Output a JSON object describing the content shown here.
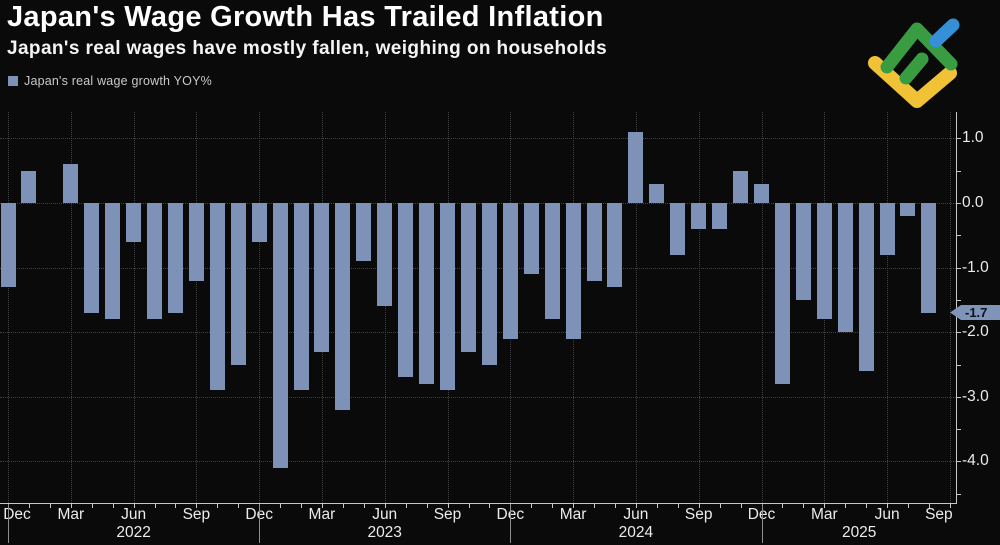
{
  "header": {
    "title": "Japan's Wage Growth Has Trailed Inflation",
    "subtitle": "Japan's real wages have mostly fallen, weighing on households"
  },
  "legend": {
    "label": "Japan's real wage growth YOY%",
    "swatch_color": "#7e91b6"
  },
  "brand": {
    "logo": "litefinance-mark",
    "colors": {
      "yellow": "#f1c235",
      "green": "#3a9c40",
      "blue": "#3590d8"
    }
  },
  "chart_data": {
    "type": "bar",
    "series_name": "Japan's real wage growth YOY%",
    "unit": "%",
    "months": [
      "Dec 2021",
      "Jan 2022",
      "Feb 2022",
      "Mar 2022",
      "Apr 2022",
      "May 2022",
      "Jun 2022",
      "Jul 2022",
      "Aug 2022",
      "Sep 2022",
      "Oct 2022",
      "Nov 2022",
      "Dec 2022",
      "Jan 2023",
      "Feb 2023",
      "Mar 2023",
      "Apr 2023",
      "May 2023",
      "Jun 2023",
      "Jul 2023",
      "Aug 2023",
      "Sep 2023",
      "Oct 2023",
      "Nov 2023",
      "Dec 2023",
      "Jan 2024",
      "Feb 2024",
      "Mar 2024",
      "Apr 2024",
      "May 2024",
      "Jun 2024",
      "Jul 2024",
      "Aug 2024",
      "Sep 2024",
      "Oct 2024",
      "Nov 2024",
      "Dec 2024",
      "Jan 2025",
      "Feb 2025",
      "Mar 2025",
      "Apr 2025",
      "May 2025",
      "Jun 2025",
      "Jul 2025",
      "Aug 2025"
    ],
    "values": [
      -1.3,
      0.5,
      0.0,
      0.6,
      -1.7,
      -1.8,
      -0.6,
      -1.8,
      -1.7,
      -1.2,
      -2.9,
      -2.5,
      -0.6,
      -4.1,
      -2.9,
      -2.3,
      -3.2,
      -0.9,
      -1.6,
      -2.7,
      -2.8,
      -2.9,
      -2.3,
      -2.5,
      -2.1,
      -1.1,
      -1.8,
      -2.1,
      -1.2,
      -1.3,
      1.1,
      0.3,
      -0.8,
      -0.4,
      -0.4,
      0.5,
      0.3,
      -2.8,
      -1.5,
      -1.8,
      -2.0,
      -2.6,
      -0.8,
      -0.2,
      -1.7
    ],
    "axis_extra_month": "Sep 2025",
    "x_tick_every_months": 3,
    "x_tick_labels": [
      "Dec",
      "Mar",
      "Jun",
      "Sep",
      "Dec",
      "Mar",
      "Jun",
      "Sep",
      "Dec",
      "Mar",
      "Jun",
      "Sep",
      "Dec",
      "Mar",
      "Jun",
      "Sep"
    ],
    "year_labels": [
      "2022",
      "2023",
      "2024",
      "2025"
    ],
    "y_tick_labels": [
      "1.0",
      "0.0",
      "-1.0",
      "-2.0",
      "-3.0",
      "-4.0"
    ],
    "y_tick_values": [
      1.0,
      0.0,
      -1.0,
      -2.0,
      -3.0,
      -4.0
    ],
    "y_minor_tick_step": 0.5,
    "ylim": [
      -4.6,
      1.4
    ],
    "grid": "dotted",
    "legend_position": "top-left",
    "y_axis_position": "right",
    "bar_color": "#7e91b6",
    "last_value": -1.7,
    "last_value_label": "-1.7"
  }
}
